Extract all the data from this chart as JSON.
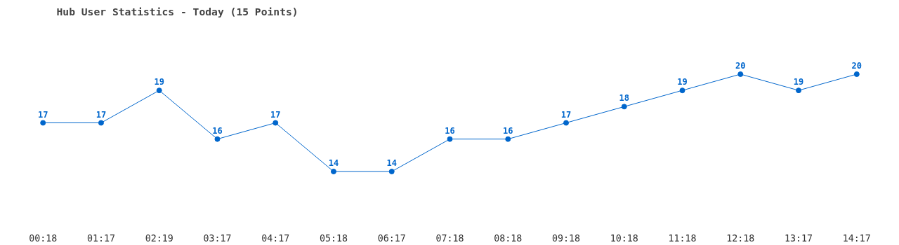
{
  "chart_data": {
    "type": "line",
    "title": "Hub User Statistics - Today (15 Points)",
    "categories": [
      "00:18",
      "01:17",
      "02:19",
      "03:17",
      "04:17",
      "05:18",
      "06:17",
      "07:18",
      "08:18",
      "09:18",
      "10:18",
      "11:18",
      "12:18",
      "13:17",
      "14:17"
    ],
    "series": [
      {
        "color": "#0066cc",
        "values": [
          17,
          17,
          19,
          16,
          17,
          14,
          14,
          16,
          16,
          17,
          18,
          19,
          20,
          19,
          20
        ]
      }
    ],
    "data_labels": true,
    "marker": "circle",
    "line_style": "solid",
    "tick_labels": "x"
  }
}
